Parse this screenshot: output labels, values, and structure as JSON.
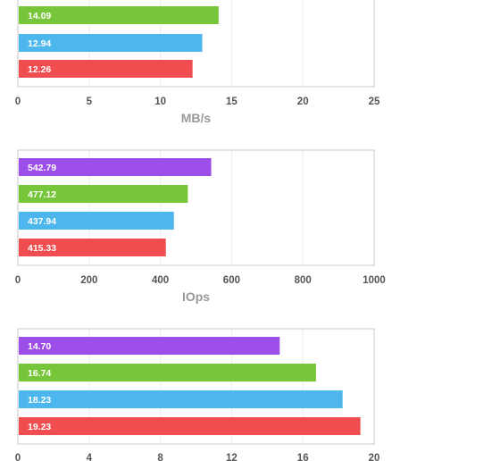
{
  "colors": {
    "purple": "#9b4fe8",
    "green": "#77c63a",
    "blue": "#4db6ec",
    "red": "#ef4d50"
  },
  "chart_data": [
    {
      "type": "bar",
      "orientation": "horizontal",
      "xlabel": "MB/s",
      "xlim": [
        0,
        25
      ],
      "ticks": [
        0,
        5,
        10,
        15,
        20,
        25
      ],
      "grid": true,
      "series_colors": [
        "green",
        "blue",
        "red"
      ],
      "values": [
        14.09,
        12.94,
        12.26
      ],
      "value_labels": [
        "14.09",
        "12.94",
        "12.26"
      ]
    },
    {
      "type": "bar",
      "orientation": "horizontal",
      "xlabel": "IOps",
      "xlim": [
        0,
        1000
      ],
      "ticks": [
        0,
        200,
        400,
        600,
        800,
        1000
      ],
      "grid": true,
      "series_colors": [
        "purple",
        "green",
        "blue",
        "red"
      ],
      "values": [
        542.79,
        477.12,
        437.94,
        415.33
      ],
      "value_labels": [
        "542.79",
        "477.12",
        "437.94",
        "415.33"
      ]
    },
    {
      "type": "bar",
      "orientation": "horizontal",
      "xlabel": "",
      "xlim": [
        0,
        20
      ],
      "ticks": [
        0,
        4,
        8,
        12,
        16,
        20
      ],
      "grid": true,
      "series_colors": [
        "purple",
        "green",
        "blue",
        "red"
      ],
      "values": [
        14.7,
        16.74,
        18.23,
        19.23
      ],
      "value_labels": [
        "14.70",
        "16.74",
        "18.23",
        "19.23"
      ]
    }
  ]
}
